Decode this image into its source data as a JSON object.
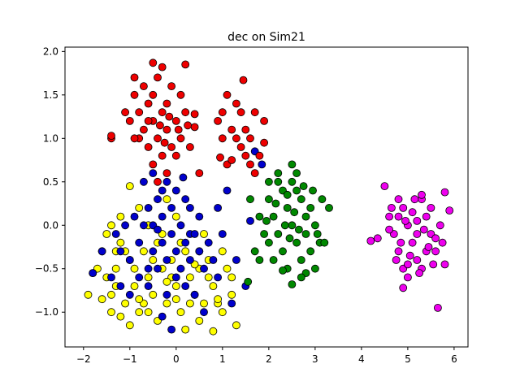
{
  "chart_data": {
    "type": "scatter",
    "title": "dec on Sim21",
    "xlabel": "",
    "ylabel": "",
    "xlim": [
      -2.4,
      6.3
    ],
    "ylim": [
      -1.4,
      2.05
    ],
    "xticks": [
      -2,
      -1,
      0,
      1,
      2,
      3,
      4,
      5,
      6
    ],
    "yticks": [
      -1.0,
      -0.5,
      0.0,
      0.5,
      1.0,
      1.5,
      2.0
    ],
    "yticklabels": [
      "−1.0",
      "−0.5",
      "0.0",
      "0.5",
      "1.0",
      "1.5",
      "2.0"
    ],
    "xticklabels": [
      "−2",
      "−1",
      "0",
      "1",
      "2",
      "3",
      "4",
      "5",
      "6"
    ],
    "grid": false,
    "legend": "none",
    "marker_edge_color": "#000000",
    "series": [
      {
        "color": "#ffff00",
        "points": [
          [
            -1.6,
            -0.3
          ],
          [
            -1.5,
            -0.6
          ],
          [
            -1.4,
            -0.8
          ],
          [
            -1.3,
            -0.5
          ],
          [
            -1.2,
            -0.2
          ],
          [
            -1.1,
            -0.9
          ],
          [
            -1.0,
            -0.4
          ],
          [
            -0.9,
            -0.7
          ],
          [
            -0.8,
            -1.0
          ],
          [
            -0.7,
            -0.3
          ],
          [
            -0.6,
            -0.6
          ],
          [
            -0.5,
            -0.8
          ],
          [
            -0.4,
            -0.2
          ],
          [
            -0.3,
            -0.5
          ],
          [
            -0.2,
            -0.9
          ],
          [
            -0.1,
            -0.4
          ],
          [
            0.0,
            -0.7
          ],
          [
            0.1,
            -1.0
          ],
          [
            0.2,
            -0.3
          ],
          [
            0.3,
            -0.6
          ],
          [
            0.4,
            -0.8
          ],
          [
            0.5,
            -0.5
          ],
          [
            0.6,
            -0.9
          ],
          [
            0.7,
            -0.4
          ],
          [
            0.8,
            -0.7
          ],
          [
            -1.7,
            -0.5
          ],
          [
            -1.5,
            -0.1
          ],
          [
            -1.3,
            -0.7
          ],
          [
            -1.1,
            -0.3
          ],
          [
            -0.9,
            -0.5
          ],
          [
            -0.7,
            -0.9
          ],
          [
            -0.5,
            -0.4
          ],
          [
            -0.3,
            -0.1
          ],
          [
            -0.1,
            -0.6
          ],
          [
            0.1,
            -0.2
          ],
          [
            0.3,
            -0.9
          ],
          [
            0.5,
            -0.3
          ],
          [
            0.7,
            -0.6
          ],
          [
            0.9,
            -0.9
          ],
          [
            1.1,
            -0.5
          ],
          [
            1.2,
            -0.8
          ],
          [
            1.3,
            -1.15
          ],
          [
            0.8,
            -1.22
          ],
          [
            0.5,
            -1.1
          ],
          [
            -1.0,
            -1.15
          ],
          [
            -1.2,
            -1.05
          ],
          [
            -1.4,
            -1.0
          ],
          [
            -1.8,
            -0.55
          ],
          [
            -1.9,
            -0.8
          ],
          [
            -1.0,
            0.45
          ],
          [
            -0.8,
            0.2
          ],
          [
            -0.6,
            0.0
          ],
          [
            -1.2,
            0.1
          ],
          [
            -1.4,
            0.0
          ],
          [
            -0.2,
            0.3
          ],
          [
            0.0,
            0.1
          ],
          [
            0.6,
            -0.1
          ],
          [
            1.0,
            -0.3
          ],
          [
            1.2,
            -0.6
          ],
          [
            -0.4,
            -1.1
          ],
          [
            0.2,
            -1.2
          ],
          [
            -0.6,
            -1.0
          ],
          [
            0.0,
            -0.85
          ],
          [
            -0.8,
            -0.85
          ],
          [
            -1.6,
            -0.85
          ],
          [
            0.9,
            -0.85
          ],
          [
            1.0,
            -1.0
          ],
          [
            0.4,
            -0.45
          ],
          [
            -0.2,
            -0.65
          ],
          [
            -1.3,
            -0.3
          ]
        ]
      },
      {
        "color": "#0000cc",
        "points": [
          [
            -0.5,
            0.6
          ],
          [
            -0.4,
            0.3
          ],
          [
            -0.3,
            0.1
          ],
          [
            -0.2,
            0.5
          ],
          [
            -0.1,
            0.2
          ],
          [
            0.0,
            0.4
          ],
          [
            0.1,
            0.0
          ],
          [
            0.2,
            0.3
          ],
          [
            0.3,
            -0.1
          ],
          [
            -0.6,
            0.2
          ],
          [
            -0.7,
            0.0
          ],
          [
            -0.8,
            -0.2
          ],
          [
            -0.9,
            0.1
          ],
          [
            -1.0,
            -0.4
          ],
          [
            -1.1,
            0.0
          ],
          [
            -1.2,
            -0.3
          ],
          [
            -1.3,
            -0.1
          ],
          [
            -1.4,
            -0.6
          ],
          [
            -0.5,
            -0.3
          ],
          [
            -0.4,
            -0.5
          ],
          [
            -0.3,
            -0.2
          ],
          [
            -0.2,
            -0.4
          ],
          [
            -0.1,
            -0.1
          ],
          [
            0.0,
            -0.3
          ],
          [
            0.1,
            -0.5
          ],
          [
            0.2,
            -0.2
          ],
          [
            0.3,
            -0.4
          ],
          [
            0.4,
            -0.1
          ],
          [
            0.5,
            -0.3
          ],
          [
            0.6,
            -0.5
          ],
          [
            0.7,
            -0.2
          ],
          [
            0.8,
            -0.4
          ],
          [
            0.9,
            -0.6
          ],
          [
            1.0,
            -0.1
          ],
          [
            -0.6,
            -0.7
          ],
          [
            -0.8,
            -0.6
          ],
          [
            -1.0,
            -0.8
          ],
          [
            -1.2,
            -0.7
          ],
          [
            0.2,
            -0.7
          ],
          [
            0.4,
            -0.8
          ],
          [
            -0.2,
            -0.8
          ],
          [
            0.0,
            -0.6
          ],
          [
            -0.7,
            0.5
          ],
          [
            -0.5,
            0.0
          ],
          [
            -0.3,
            0.4
          ],
          [
            0.15,
            0.55
          ],
          [
            -0.4,
            -0.05
          ],
          [
            0.5,
            0.1
          ],
          [
            0.3,
            0.2
          ],
          [
            -0.6,
            -0.5
          ],
          [
            1.3,
            -0.4
          ],
          [
            1.5,
            -0.7
          ],
          [
            1.2,
            -0.9
          ],
          [
            -1.6,
            -0.3
          ],
          [
            -1.8,
            -0.55
          ],
          [
            -0.1,
            -1.2
          ],
          [
            -0.3,
            -1.05
          ],
          [
            0.6,
            -1.0
          ],
          [
            1.6,
            0.05
          ],
          [
            1.7,
            0.85
          ],
          [
            1.85,
            0.7
          ],
          [
            1.1,
            0.4
          ],
          [
            0.9,
            0.2
          ]
        ]
      },
      {
        "color": "#ee0000",
        "points": [
          [
            -0.9,
            1.5
          ],
          [
            -0.8,
            1.3
          ],
          [
            -0.7,
            1.1
          ],
          [
            -0.6,
            1.4
          ],
          [
            -0.5,
            1.2
          ],
          [
            -0.4,
            1.0
          ],
          [
            -0.3,
            1.3
          ],
          [
            -0.2,
            1.1
          ],
          [
            -0.1,
            0.9
          ],
          [
            0.0,
            1.2
          ],
          [
            0.1,
            1.0
          ],
          [
            0.2,
            1.3
          ],
          [
            -0.8,
            1.0
          ],
          [
            -0.7,
            1.6
          ],
          [
            -0.6,
            0.9
          ],
          [
            -0.5,
            1.5
          ],
          [
            -0.4,
            1.7
          ],
          [
            -0.3,
            0.8
          ],
          [
            -0.2,
            1.4
          ],
          [
            -0.1,
            1.6
          ],
          [
            0.0,
            0.8
          ],
          [
            0.1,
            1.5
          ],
          [
            -1.0,
            1.2
          ],
          [
            -0.9,
            1.0
          ],
          [
            -1.1,
            1.3
          ],
          [
            -0.6,
            1.2
          ],
          [
            -0.5,
            0.7
          ],
          [
            -0.35,
            1.15
          ],
          [
            -0.25,
            0.95
          ],
          [
            -0.15,
            1.25
          ],
          [
            0.05,
            1.1
          ],
          [
            0.25,
            1.15
          ],
          [
            -0.5,
            1.87
          ],
          [
            -0.3,
            1.82
          ],
          [
            0.2,
            1.85
          ],
          [
            -0.9,
            1.7
          ],
          [
            -1.4,
            1.0
          ],
          [
            -1.4,
            1.03
          ],
          [
            0.4,
            1.28
          ],
          [
            0.4,
            1.13
          ],
          [
            0.3,
            0.9
          ],
          [
            0.5,
            0.6
          ],
          [
            -0.2,
            0.6
          ],
          [
            -0.4,
            0.5
          ],
          [
            1.1,
            1.5
          ],
          [
            1.0,
            1.3
          ],
          [
            0.9,
            1.2
          ],
          [
            1.2,
            1.1
          ],
          [
            1.3,
            1.0
          ],
          [
            1.4,
            0.9
          ],
          [
            1.5,
            1.1
          ],
          [
            1.6,
            1.0
          ],
          [
            1.7,
            1.3
          ],
          [
            1.8,
            0.8
          ],
          [
            1.3,
            1.4
          ],
          [
            1.4,
            1.3
          ],
          [
            1.5,
            0.8
          ],
          [
            1.1,
            0.7
          ],
          [
            1.2,
            0.75
          ],
          [
            1.6,
            0.7
          ],
          [
            1.7,
            0.6
          ],
          [
            1.9,
            1.2
          ],
          [
            1.45,
            1.67
          ],
          [
            0.95,
            0.78
          ],
          [
            1.0,
            1.0
          ],
          [
            1.9,
            0.95
          ]
        ]
      },
      {
        "color": "#008800",
        "points": [
          [
            2.0,
            0.3
          ],
          [
            2.1,
            0.1
          ],
          [
            2.2,
            -0.1
          ],
          [
            2.3,
            0.4
          ],
          [
            2.4,
            0.2
          ],
          [
            2.5,
            0.0
          ],
          [
            2.6,
            -0.2
          ],
          [
            2.7,
            0.3
          ],
          [
            2.8,
            0.1
          ],
          [
            2.9,
            -0.3
          ],
          [
            2.0,
            -0.2
          ],
          [
            2.1,
            -0.4
          ],
          [
            2.2,
            0.5
          ],
          [
            2.3,
            -0.3
          ],
          [
            2.4,
            -0.5
          ],
          [
            2.5,
            0.5
          ],
          [
            2.6,
            0.4
          ],
          [
            2.7,
            -0.4
          ],
          [
            2.8,
            -0.1
          ],
          [
            2.9,
            0.2
          ],
          [
            3.0,
            0.0
          ],
          [
            3.1,
            -0.2
          ],
          [
            3.15,
            0.3
          ],
          [
            2.35,
            0.0
          ],
          [
            2.45,
            -0.15
          ],
          [
            2.55,
            0.15
          ],
          [
            2.65,
            -0.05
          ],
          [
            1.8,
            0.1
          ],
          [
            1.9,
            -0.1
          ],
          [
            1.7,
            -0.3
          ],
          [
            1.8,
            -0.4
          ],
          [
            2.0,
            0.5
          ],
          [
            2.2,
            0.6
          ],
          [
            2.5,
            0.7
          ],
          [
            2.6,
            0.6
          ],
          [
            3.0,
            -0.5
          ],
          [
            2.8,
            -0.55
          ],
          [
            2.5,
            -0.68
          ],
          [
            2.3,
            -0.52
          ],
          [
            2.7,
            -0.6
          ],
          [
            3.2,
            -0.2
          ],
          [
            3.3,
            0.2
          ],
          [
            1.6,
            0.3
          ],
          [
            1.55,
            -0.65
          ],
          [
            2.15,
            0.25
          ],
          [
            2.75,
            0.45
          ],
          [
            2.95,
            0.4
          ],
          [
            2.4,
            0.35
          ],
          [
            3.05,
            -0.1
          ],
          [
            1.95,
            0.05
          ]
        ]
      },
      {
        "color": "#ee00ee",
        "points": [
          [
            4.6,
            0.1
          ],
          [
            4.7,
            -0.1
          ],
          [
            4.8,
            -0.3
          ],
          [
            4.9,
            0.2
          ],
          [
            5.0,
            0.0
          ],
          [
            5.1,
            -0.2
          ],
          [
            5.2,
            -0.4
          ],
          [
            5.3,
            0.3
          ],
          [
            5.4,
            0.1
          ],
          [
            5.5,
            -0.1
          ],
          [
            5.6,
            -0.3
          ],
          [
            5.7,
            0.0
          ],
          [
            4.8,
            0.1
          ],
          [
            4.9,
            -0.5
          ],
          [
            5.0,
            -0.6
          ],
          [
            5.1,
            0.15
          ],
          [
            5.2,
            0.05
          ],
          [
            5.3,
            -0.5
          ],
          [
            5.4,
            -0.3
          ],
          [
            5.5,
            0.2
          ],
          [
            5.6,
            -0.15
          ],
          [
            4.75,
            -0.4
          ],
          [
            4.85,
            -0.2
          ],
          [
            5.05,
            -0.35
          ],
          [
            5.35,
            -0.05
          ],
          [
            5.45,
            -0.25
          ],
          [
            4.5,
            0.45
          ],
          [
            4.65,
            0.2
          ],
          [
            4.8,
            0.3
          ],
          [
            5.3,
            0.35
          ],
          [
            5.8,
            -0.45
          ],
          [
            5.9,
            0.17
          ],
          [
            5.8,
            0.38
          ],
          [
            4.2,
            -0.18
          ],
          [
            4.35,
            -0.15
          ],
          [
            4.9,
            -0.72
          ],
          [
            5.65,
            -0.95
          ],
          [
            5.0,
            -0.45
          ],
          [
            5.25,
            -0.55
          ],
          [
            5.55,
            -0.45
          ],
          [
            4.6,
            -0.05
          ],
          [
            5.15,
            0.3
          ],
          [
            5.75,
            -0.2
          ],
          [
            5.2,
            -0.1
          ],
          [
            4.95,
            0.05
          ]
        ]
      }
    ]
  }
}
